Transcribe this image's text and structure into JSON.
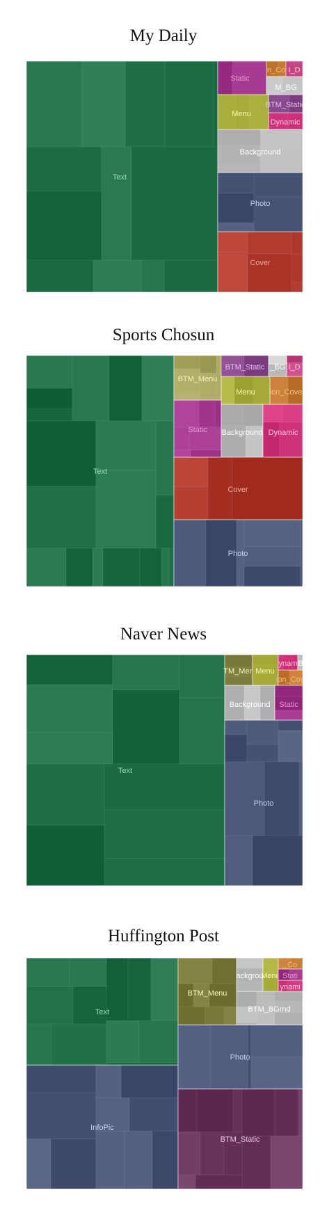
{
  "chart_data": [
    {
      "type": "treemap",
      "title": "My Daily",
      "groups": [
        {
          "name": "Text",
          "color": "#1f6e47",
          "value": 70
        },
        {
          "name": "Cover",
          "color": "#b03a2e",
          "value": 8
        },
        {
          "name": "Photo",
          "color": "#4a5678",
          "value": 7
        },
        {
          "name": "Background",
          "color": "#b8b8b8",
          "value": 5
        },
        {
          "name": "Static",
          "color": "#a0348a",
          "value": 3
        },
        {
          "name": "Menu",
          "color": "#a9ad3c",
          "value": 2.5
        },
        {
          "name": "Dynamic",
          "color": "#d0357c",
          "value": 2
        },
        {
          "name": "BTM_Static",
          "color": "#8a4a8e",
          "value": 1.5
        },
        {
          "name": "n_Co",
          "color": "#c0762f",
          "value": 0.7
        },
        {
          "name": "M_BG",
          "color": "#c9c9c9",
          "value": 0.5
        },
        {
          "name": "I_D",
          "color": "#c04080",
          "value": 0.3
        }
      ]
    },
    {
      "type": "treemap",
      "title": "Sports Chosun",
      "groups": [
        {
          "name": "Text",
          "color": "#1f6e47",
          "value": 53
        },
        {
          "name": "Cover",
          "color": "#b03a2e",
          "value": 14
        },
        {
          "name": "Photo",
          "color": "#4a5678",
          "value": 14
        },
        {
          "name": "Static",
          "color": "#a0348a",
          "value": 5
        },
        {
          "name": "Background",
          "color": "#b8b8b8",
          "value": 4
        },
        {
          "name": "Dynamic",
          "color": "#d0357c",
          "value": 4
        },
        {
          "name": "BTM_Menu",
          "color": "#a8a560",
          "value": 3.5
        },
        {
          "name": "Menu",
          "color": "#a9ad3c",
          "value": 1.5
        },
        {
          "name": "BTM_Static",
          "color": "#8a4a8e",
          "value": 1
        },
        {
          "name": "ion_Cove",
          "color": "#c0762f",
          "value": 1.5
        },
        {
          "name": "_BG",
          "color": "#c9c9c9",
          "value": 0.5
        },
        {
          "name": "I_D",
          "color": "#c04080",
          "value": 0.5
        }
      ]
    },
    {
      "type": "treemap",
      "title": "Naver News",
      "groups": [
        {
          "name": "Text",
          "color": "#1f6e47",
          "value": 72
        },
        {
          "name": "Photo",
          "color": "#4a5678",
          "value": 20
        },
        {
          "name": "Background",
          "color": "#b8b8b8",
          "value": 3.5
        },
        {
          "name": "Static",
          "color": "#a0348a",
          "value": 2
        },
        {
          "name": "TM_Men",
          "color": "#7a7a3a",
          "value": 1
        },
        {
          "name": "Menu",
          "color": "#a9ad3c",
          "value": 0.8
        },
        {
          "name": "ion_Cov",
          "color": "#c0762f",
          "value": 0.4
        },
        {
          "name": "ynam",
          "color": "#d0357c",
          "value": 0.3
        },
        {
          "name": "B",
          "color": "#c9c9c9",
          "value": 0.1
        }
      ]
    },
    {
      "type": "treemap",
      "title": "Huffington Post",
      "groups": [
        {
          "name": "Text",
          "color": "#1f6e47",
          "value": 25
        },
        {
          "name": "InfoPic",
          "color": "#4a5678",
          "value": 30
        },
        {
          "name": "BTM_Static",
          "color": "#6a3760",
          "value": 20
        },
        {
          "name": "Photo",
          "color": "#4a5678",
          "value": 10
        },
        {
          "name": "BTM_Menu",
          "color": "#7a7a3a",
          "value": 7
        },
        {
          "name": "BTM_BGrnd",
          "color": "#b8b8b8",
          "value": 4
        },
        {
          "name": "ackgrou",
          "color": "#b8b8b8",
          "value": 1.5
        },
        {
          "name": "Menu",
          "color": "#a9ad3c",
          "value": 1
        },
        {
          "name": "ynami",
          "color": "#d0357c",
          "value": 0.5
        },
        {
          "name": "_Co",
          "color": "#c0762f",
          "value": 0.5
        },
        {
          "name": "Stati",
          "color": "#a0348a",
          "value": 0.5
        }
      ]
    }
  ]
}
